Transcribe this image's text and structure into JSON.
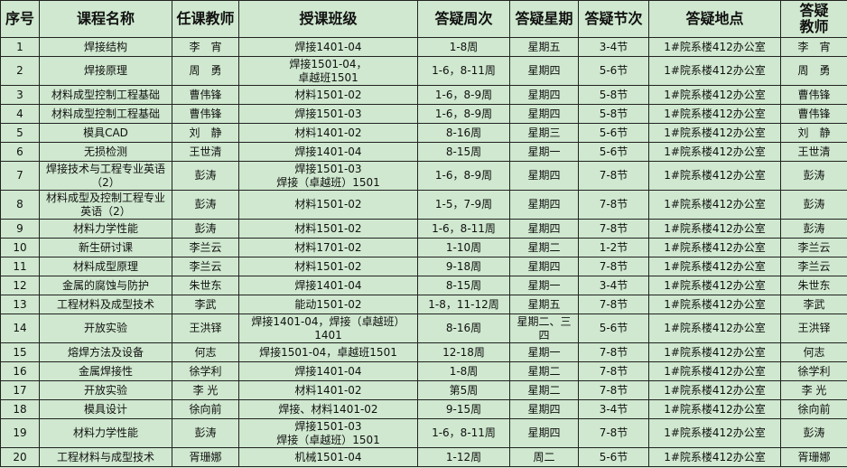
{
  "table": {
    "headers": [
      "序号",
      "课程名称",
      "任课教师",
      "授课班级",
      "答疑周次",
      "答疑星期",
      "答疑节次",
      "答疑地点",
      "答疑\n教师"
    ],
    "rows": [
      [
        "1",
        "焊接结构",
        "李　宵",
        "焊接1401-04",
        "1-8周",
        "星期五",
        "3-4节",
        "1#院系楼412办公室",
        "李　宵"
      ],
      [
        "2",
        "焊接原理",
        "周　勇",
        "焊接1501-04，\n卓越班1501",
        "1-6，8-11周",
        "星期四",
        "5-6节",
        "1#院系楼412办公室",
        "周　勇"
      ],
      [
        "3",
        "材料成型控制工程基础",
        "曹伟锋",
        "材料1501-02",
        "1-6，8-9周",
        "星期四",
        "5-8节",
        "1#院系楼412办公室",
        "曹伟锋"
      ],
      [
        "4",
        "材料成型控制工程基础",
        "曹伟锋",
        "焊接1501-03",
        "1-6，8-9周",
        "星期四",
        "5-8节",
        "1#院系楼412办公室",
        "曹伟锋"
      ],
      [
        "5",
        "模具CAD",
        "刘　静",
        "材料1401-02",
        "8-16周",
        "星期三",
        "5-6节",
        "1#院系楼412办公室",
        "刘　静"
      ],
      [
        "6",
        "无损检测",
        "王世清",
        "焊接1401-04",
        "8-15周",
        "星期一",
        "5-6节",
        "1#院系楼412办公室",
        "王世清"
      ],
      [
        "7",
        "焊接技术与工程专业英语（2）",
        "彭涛",
        "焊接1501-03\n焊接（卓越班）1501",
        "1-6，8-9周",
        "星期四",
        "7-8节",
        "1#院系楼412办公室",
        "彭涛"
      ],
      [
        "8",
        "材料成型及控制工程专业英语（2）",
        "彭涛",
        "材料1501-02",
        "1-5，7-9周",
        "星期四",
        "7-8节",
        "1#院系楼412办公室",
        "彭涛"
      ],
      [
        "9",
        "材料力学性能",
        "彭涛",
        "材料1501-02",
        "1-6，8-11周",
        "星期四",
        "7-8节",
        "1#院系楼412办公室",
        "彭涛"
      ],
      [
        "10",
        "新生研讨课",
        "李兰云",
        "材料1701-02",
        "1-10周",
        "星期二",
        "1-2节",
        "1#院系楼412办公室",
        "李兰云"
      ],
      [
        "11",
        "材料成型原理",
        "李兰云",
        "材料1501-02",
        "9-18周",
        "星期四",
        "7-8节",
        "1#院系楼412办公室",
        "李兰云"
      ],
      [
        "12",
        "金属的腐蚀与防护",
        "朱世东",
        "焊接1401-04",
        "8-15周",
        "星期一",
        "3-4节",
        "1#院系楼412办公室",
        "朱世东"
      ],
      [
        "13",
        "工程材料及成型技术",
        "李武",
        "能动1501-02",
        "1-8，11-12周",
        "星期五",
        "7-8节",
        "1#院系楼412办公室",
        "李武"
      ],
      [
        "14",
        "开放实验",
        "王洪铎",
        "焊接1401-04，焊接（卓越班）1401",
        "8-16周",
        "星期二、三四",
        "5-6节",
        "1#院系楼412办公室",
        "王洪铎"
      ],
      [
        "15",
        "熔焊方法及设备",
        "何志",
        "焊接1501-04，卓越班1501",
        "12-18周",
        "星期一",
        "7-8节",
        "1#院系楼412办公室",
        "何志"
      ],
      [
        "16",
        "金属焊接性",
        "徐学利",
        "焊接1401-04",
        "1-8周",
        "星期二",
        "7-8节",
        "1#院系楼412办公室",
        "徐学利"
      ],
      [
        "17",
        "开放实验",
        "李 光",
        "材料1401-02",
        "第5周",
        "星期二",
        "7-8节",
        "1#院系楼412办公室",
        "李 光"
      ],
      [
        "18",
        "模具设计",
        "徐向前",
        "焊接、材料1401-02",
        "9-15周",
        "星期四",
        "3-4节",
        "1#院系楼412办公室",
        "徐向前"
      ],
      [
        "19",
        "材料力学性能",
        "彭涛",
        "焊接1501-03\n焊接（卓越班）1501",
        "1-6，8-11周",
        "星期四",
        "7-8节",
        "1#院系楼412办公室",
        "彭涛"
      ],
      [
        "20",
        "工程材料与成型技术",
        "胥珊娜",
        "机械1501-04",
        "1-12周",
        "周二",
        "5-6节",
        "1#院系楼412办公室",
        "胥珊娜"
      ]
    ],
    "tall_rows": [
      2,
      7,
      8,
      14,
      19
    ]
  },
  "colors": {
    "background": "#cfe8cf",
    "border": "#222222"
  }
}
